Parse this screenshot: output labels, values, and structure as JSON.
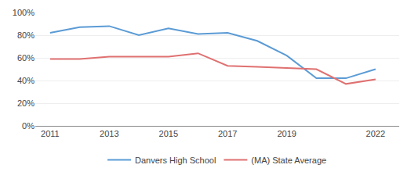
{
  "chart_data": {
    "type": "line",
    "series": [
      {
        "name": "Danvers High School",
        "color": "#5b9bd5",
        "x": [
          2011,
          2012,
          2013,
          2014,
          2015,
          2016,
          2017,
          2018,
          2019,
          2020,
          2021,
          2022
        ],
        "values": [
          0.82,
          0.87,
          0.88,
          0.8,
          0.86,
          0.81,
          0.82,
          0.75,
          0.62,
          0.42,
          0.42,
          0.5
        ]
      },
      {
        "name": "(MA) State Average",
        "color": "#e07070",
        "x": [
          2011,
          2012,
          2013,
          2014,
          2015,
          2016,
          2017,
          2018,
          2019,
          2020,
          2021,
          2022
        ],
        "values": [
          0.59,
          0.59,
          0.61,
          0.61,
          0.61,
          0.64,
          0.53,
          0.52,
          0.51,
          0.5,
          0.37,
          0.41
        ]
      }
    ],
    "xlim": [
      2010.5,
      2022.8
    ],
    "xticks": [
      2011,
      2013,
      2015,
      2017,
      2019,
      2022
    ],
    "ylim": [
      0,
      1.0
    ],
    "yticks": [
      {
        "value": 0.0,
        "label": "0%"
      },
      {
        "value": 0.2,
        "label": "20%"
      },
      {
        "value": 0.4,
        "label": "40%"
      },
      {
        "value": 0.6,
        "label": "60%"
      },
      {
        "value": 0.8,
        "label": "80%"
      },
      {
        "value": 1.0,
        "label": "100%"
      }
    ],
    "grid": "y",
    "legend": "bottom"
  }
}
